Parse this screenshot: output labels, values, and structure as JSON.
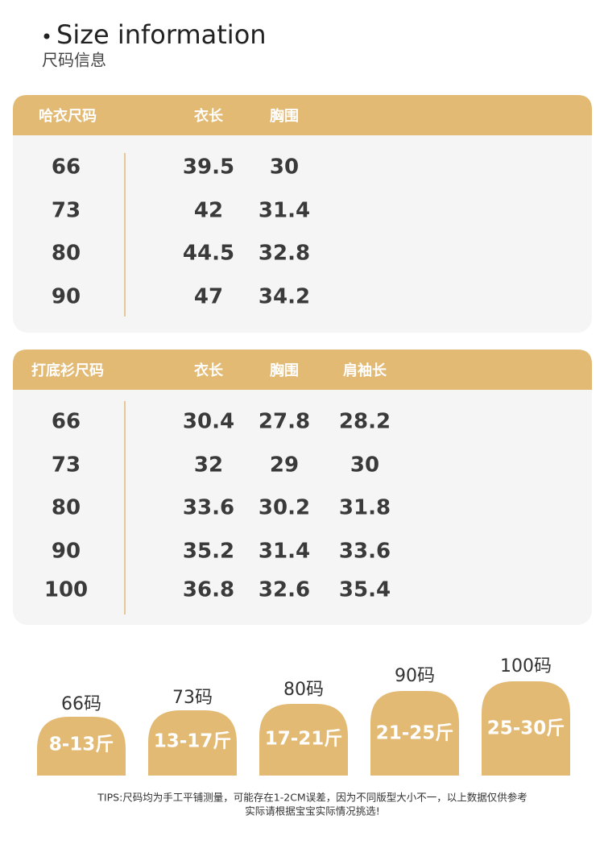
{
  "header": {
    "title": "Size information",
    "subtitle": "尺码信息"
  },
  "tables": [
    {
      "headers": [
        "哈衣尺码",
        "衣长",
        "胸围"
      ],
      "rows": [
        [
          "66",
          "39.5",
          "30"
        ],
        [
          "73",
          "42",
          "31.4"
        ],
        [
          "80",
          "44.5",
          "32.8"
        ],
        [
          "90",
          "47",
          "34.2"
        ]
      ]
    },
    {
      "headers": [
        "打底衫尺码",
        "衣长",
        "胸围",
        "肩袖长"
      ],
      "rows": [
        [
          "66",
          "30.4",
          "27.8",
          "28.2"
        ],
        [
          "73",
          "32",
          "29",
          "30"
        ],
        [
          "80",
          "33.6",
          "30.2",
          "31.8"
        ],
        [
          "90",
          "35.2",
          "31.4",
          "33.6"
        ],
        [
          "100",
          "36.8",
          "32.6",
          "35.4"
        ]
      ]
    }
  ],
  "weights": [
    {
      "size": "66码",
      "range": "8-13斤"
    },
    {
      "size": "73码",
      "range": "13-17斤"
    },
    {
      "size": "80码",
      "range": "17-21斤"
    },
    {
      "size": "90码",
      "range": "21-25斤"
    },
    {
      "size": "100码",
      "range": "25-30斤"
    }
  ],
  "tips": [
    "TIPS:尺码均为手工平铺测量，可能存在1-2CM误差，因为不同版型大小不一，以上数据仅供参考",
    "实际请根据宝宝实际情况挑选!"
  ]
}
